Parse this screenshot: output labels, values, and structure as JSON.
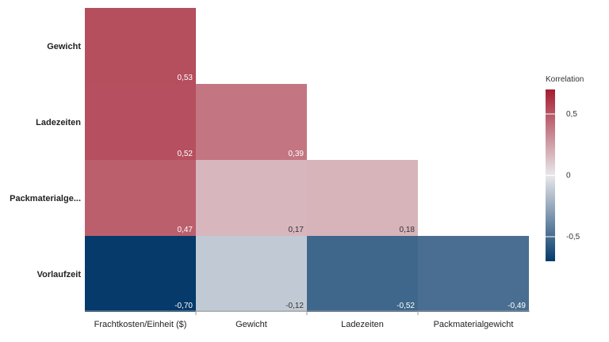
{
  "chart_data": {
    "type": "heatmap",
    "rows": [
      "Gewicht",
      "Ladezeiten",
      "Packmaterialge...",
      "Vorlaufzeit"
    ],
    "columns": [
      "Frachtkosten/Einheit ($)",
      "Gewicht",
      "Ladezeiten",
      "Packmaterialgewicht"
    ],
    "cells": [
      [
        0.53,
        null,
        null,
        null
      ],
      [
        0.52,
        0.39,
        null,
        null
      ],
      [
        0.47,
        0.17,
        0.18,
        null
      ],
      [
        -0.7,
        -0.12,
        -0.52,
        -0.49
      ]
    ],
    "cell_labels": [
      [
        "0,53",
        null,
        null,
        null
      ],
      [
        "0,52",
        "0,39",
        null,
        null
      ],
      [
        "0,47",
        "0,17",
        "0,18",
        null
      ],
      [
        "-0,70",
        "-0,12",
        "-0,52",
        "-0,49"
      ]
    ],
    "legend": {
      "title": "Korrelation",
      "placement": "right",
      "ticks": [
        {
          "value": 0.5,
          "label": "0,5"
        },
        {
          "value": 0,
          "label": "0"
        },
        {
          "value": -0.5,
          "label": "-0,5"
        }
      ],
      "range": [
        -0.7,
        0.7
      ]
    },
    "colors": {
      "positive": "#a51c30",
      "neutral": "#e8e8ea",
      "negative": "#053a6b"
    }
  }
}
